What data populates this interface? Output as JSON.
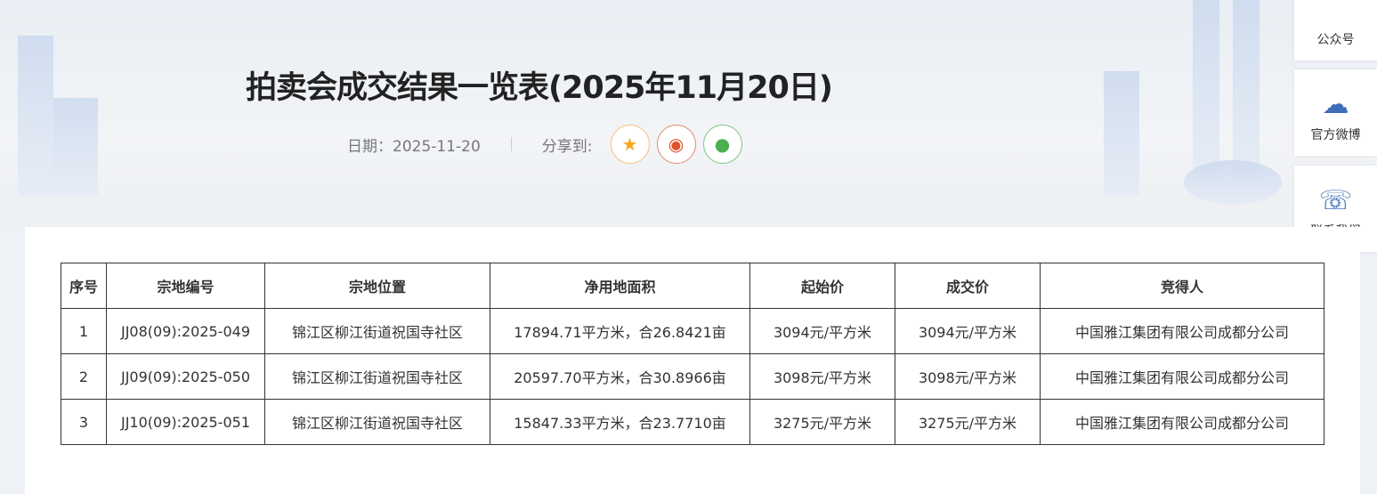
{
  "page": {
    "title": "拍卖会成交结果一览表(2025年11月20日)",
    "date_label": "日期：2025-11-20",
    "share_label": "分享到:"
  },
  "share": [
    {
      "icon": "qzone-star-icon",
      "color": "#f5a623"
    },
    {
      "icon": "weibo-icon",
      "color": "#e0532c"
    },
    {
      "icon": "wechat-icon",
      "color": "#4caf50"
    }
  ],
  "side": [
    {
      "label": "公众号",
      "icon": "wechat-chat-icon"
    },
    {
      "label": "官方微博",
      "icon": "weibo-icon"
    },
    {
      "label": "联系我们",
      "icon": "telephone-icon"
    }
  ],
  "table": {
    "headers": [
      "序号",
      "宗地编号",
      "宗地位置",
      "净用地面积",
      "起始价",
      "成交价",
      "竞得人"
    ],
    "rows": [
      [
        "1",
        "JJ08(09):2025-049",
        "锦江区柳江街道祝国寺社区",
        "17894.71平方米，合26.8421亩",
        "3094元/平方米",
        "3094元/平方米",
        "中国雅江集团有限公司成都分公司"
      ],
      [
        "2",
        "JJ09(09):2025-050",
        "锦江区柳江街道祝国寺社区",
        "20597.70平方米，合30.8966亩",
        "3098元/平方米",
        "3098元/平方米",
        "中国雅江集团有限公司成都分公司"
      ],
      [
        "3",
        "JJ10(09):2025-051",
        "锦江区柳江街道祝国寺社区",
        "15847.33平方米，合23.7710亩",
        "3275元/平方米",
        "3275元/平方米",
        "中国雅江集团有限公司成都分公司"
      ]
    ]
  }
}
